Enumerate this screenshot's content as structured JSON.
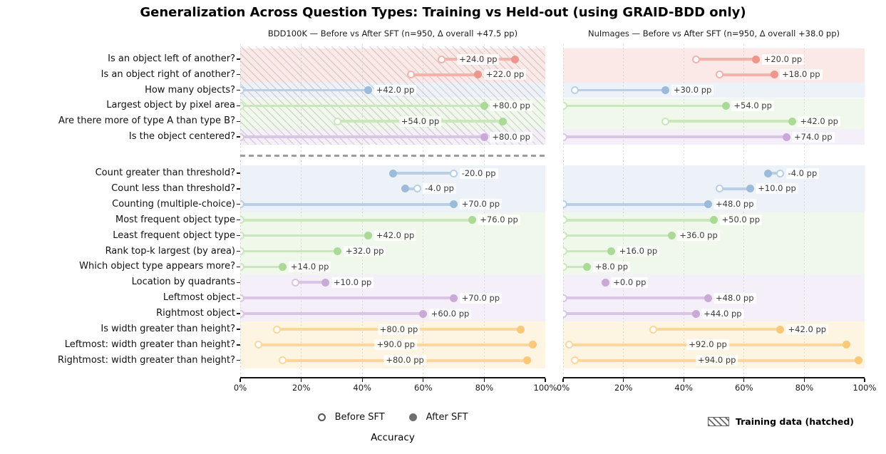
{
  "chart_data": {
    "type": "dumbbell",
    "title": "Generalization Across Question Types: Training vs Held-out (using GRAID-BDD only)",
    "xlabel": "Accuracy",
    "xlim": [
      0,
      100
    ],
    "x_tick_values": [
      0,
      20,
      40,
      60,
      80,
      100
    ],
    "x_tick_labels": [
      "0%",
      "20%",
      "40%",
      "60%",
      "80%",
      "100%"
    ],
    "grid": "vertical-dotted",
    "categories": [
      "Is an object left of another?",
      "Is an object right of another?",
      "How many objects?",
      "Largest object by pixel area",
      "Are there more of type A than type B?",
      "Is the object centered?",
      "Count greater than threshold?",
      "Count less than threshold?",
      "Counting (multiple-choice)",
      "Most frequent object type",
      "Least frequent object type",
      "Rank top-k largest (by area)",
      "Which object type appears more?",
      "Location by quadrants",
      "Leftmost object",
      "Rightmost object",
      "Is width greater than height?",
      "Leftmost: width greater than height?",
      "Rightmost: width greater than height?"
    ],
    "row_groups": [
      "red",
      "red",
      "blue",
      "green",
      "green",
      "purple",
      "blue",
      "blue",
      "blue",
      "green",
      "green",
      "green",
      "green",
      "purple",
      "purple",
      "purple",
      "orange",
      "orange",
      "orange"
    ],
    "training_rows": 6,
    "panels": [
      {
        "title": "BDD100K — Before vs After SFT (n=950, Δ overall +47.5 pp)",
        "training_hatched": true,
        "series": [
          {
            "name": "Before SFT",
            "values": [
              66,
              56,
              0,
              0,
              32,
              0,
              70,
              58,
              0,
              0,
              0,
              0,
              0,
              18,
              0,
              0,
              12,
              6,
              14
            ]
          },
          {
            "name": "After SFT",
            "values": [
              90,
              78,
              42,
              80,
              86,
              80,
              50,
              54,
              70,
              76,
              42,
              32,
              14,
              28,
              70,
              60,
              92,
              96,
              94
            ]
          }
        ],
        "delta_labels": [
          "+24.0 pp",
          "+22.0 pp",
          "+42.0 pp",
          "+80.0 pp",
          "+54.0 pp",
          "+80.0 pp",
          "-20.0 pp",
          "-4.0 pp",
          "+70.0 pp",
          "+76.0 pp",
          "+42.0 pp",
          "+32.0 pp",
          "+14.0 pp",
          "+10.0 pp",
          "+70.0 pp",
          "+60.0 pp",
          "+80.0 pp",
          "+90.0 pp",
          "+80.0 pp"
        ]
      },
      {
        "title": "NuImages — Before vs After SFT (n=950, Δ overall +38.0 pp)",
        "training_hatched": false,
        "series": [
          {
            "name": "Before SFT",
            "values": [
              44,
              52,
              4,
              0,
              34,
              0,
              72,
              52,
              0,
              0,
              0,
              0,
              0,
              14,
              0,
              0,
              30,
              2,
              4
            ]
          },
          {
            "name": "After SFT",
            "values": [
              64,
              70,
              34,
              54,
              76,
              74,
              68,
              62,
              48,
              50,
              36,
              16,
              8,
              14,
              48,
              44,
              72,
              94,
              98
            ]
          }
        ],
        "delta_labels": [
          "+20.0 pp",
          "+18.0 pp",
          "+30.0 pp",
          "+54.0 pp",
          "+42.0 pp",
          "+74.0 pp",
          "-4.0 pp",
          "+10.0 pp",
          "+48.0 pp",
          "+50.0 pp",
          "+36.0 pp",
          "+16.0 pp",
          "+8.0 pp",
          "+0.0 pp",
          "+48.0 pp",
          "+44.0 pp",
          "+42.0 pp",
          "+92.0 pp",
          "+94.0 pp"
        ]
      }
    ],
    "legend": {
      "before_label": "Before SFT",
      "after_label": "After SFT",
      "hatch_label": "Training data (hatched)",
      "position": "bottom"
    },
    "colors": {
      "red": {
        "line": "#f5b2aa",
        "dot": "#ef968c",
        "band": "#fbe9e7"
      },
      "blue": {
        "line": "#b7cfe7",
        "dot": "#9cbbdb",
        "band": "#edf2f8"
      },
      "green": {
        "line": "#c9e7ba",
        "dot": "#abd997",
        "band": "#f0f8eb"
      },
      "purple": {
        "line": "#d9c5e4",
        "dot": "#c9aad7",
        "band": "#f4eff9"
      },
      "orange": {
        "line": "#fbd79f",
        "dot": "#f9c878",
        "band": "#fdf4e2"
      }
    }
  }
}
